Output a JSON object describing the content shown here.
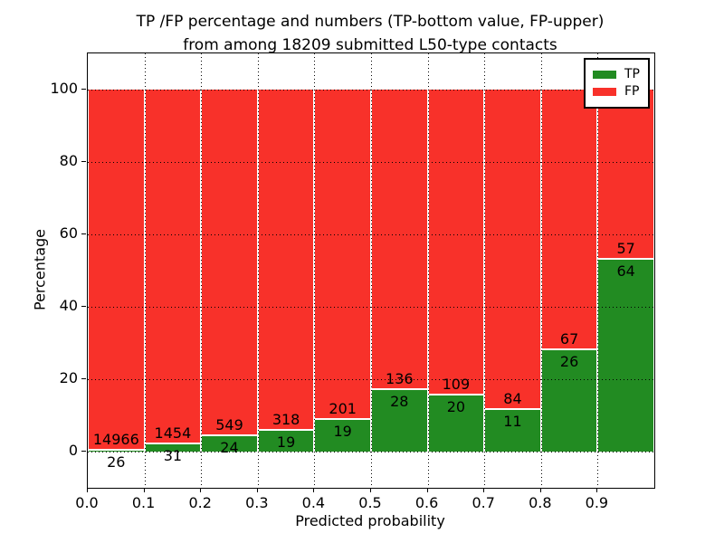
{
  "title": {
    "line1": "TP /FP percentage and numbers (TP-bottom value, FP-upper)",
    "line2": "from among 18209 submitted L50-type contacts"
  },
  "axes": {
    "ylabel": "Percentage",
    "xlabel": "Predicted probability",
    "yticks": [
      "0",
      "20",
      "40",
      "60",
      "80",
      "100"
    ],
    "ytick_values": [
      0,
      20,
      40,
      60,
      80,
      100
    ],
    "xticks": [
      "0.0",
      "0.1",
      "0.2",
      "0.3",
      "0.4",
      "0.5",
      "0.6",
      "0.7",
      "0.8",
      "0.9"
    ],
    "xtick_values": [
      0.0,
      0.1,
      0.2,
      0.3,
      0.4,
      0.5,
      0.6,
      0.7,
      0.8,
      0.9
    ]
  },
  "legend": {
    "items": [
      {
        "label": "TP",
        "color": "#228b22"
      },
      {
        "label": "FP",
        "color": "#f8312a"
      }
    ]
  },
  "colors": {
    "tp": "#228b22",
    "fp": "#f8312a",
    "background": "#ffffff",
    "text": "#000000",
    "grid": "#000000",
    "bar_edge": "#ffffff"
  },
  "chart_data": {
    "type": "bar",
    "stacked": true,
    "normalized": "percent",
    "title": "TP /FP percentage and numbers (TP-bottom value, FP-upper) from among 18209 submitted L50-type contacts",
    "total_contacts": 18209,
    "xlabel": "Predicted probability",
    "ylabel": "Percentage",
    "xlim": [
      0.0,
      1.0
    ],
    "ylim": [
      -10,
      110
    ],
    "grid": true,
    "grid_style": "dotted",
    "legend_position": "upper right",
    "bin_width": 0.1,
    "categories": [
      "0.0-0.1",
      "0.1-0.2",
      "0.2-0.3",
      "0.3-0.4",
      "0.4-0.5",
      "0.5-0.6",
      "0.6-0.7",
      "0.7-0.8",
      "0.8-0.9",
      "0.9-1.0"
    ],
    "series": [
      {
        "name": "TP",
        "color": "#228b22",
        "counts": [
          26,
          31,
          24,
          19,
          19,
          28,
          20,
          11,
          26,
          64
        ],
        "pct": [
          0.17,
          2.09,
          4.19,
          5.64,
          8.64,
          17.07,
          15.5,
          11.58,
          27.96,
          52.89
        ]
      },
      {
        "name": "FP",
        "color": "#f8312a",
        "counts": [
          14966,
          1454,
          549,
          318,
          201,
          136,
          109,
          84,
          67,
          57
        ],
        "pct": [
          99.83,
          97.91,
          95.81,
          94.36,
          91.36,
          82.93,
          84.5,
          88.42,
          72.04,
          47.11
        ]
      }
    ]
  }
}
